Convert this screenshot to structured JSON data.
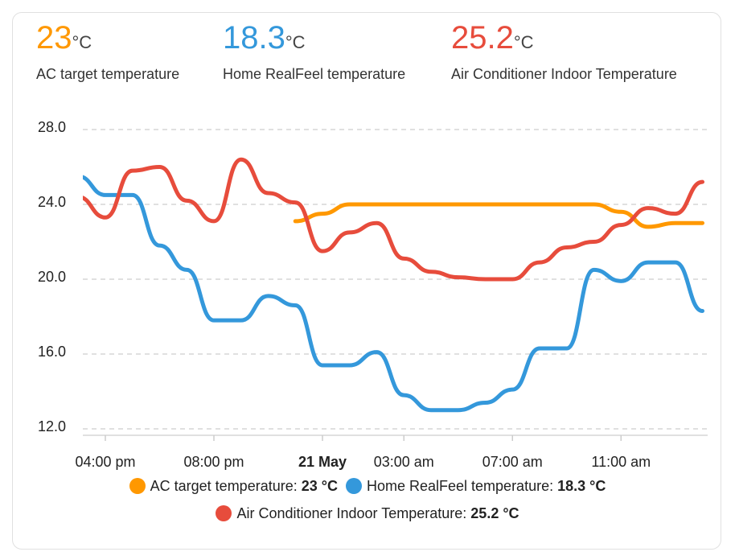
{
  "stats": [
    {
      "value": "23",
      "unit": "°C",
      "label": "AC target temperature",
      "color": "#ff9800"
    },
    {
      "value": "18.3",
      "unit": "°C",
      "label": "Home RealFeel temperature",
      "color": "#3498db"
    },
    {
      "value": "25.2",
      "unit": "°C",
      "label": "Air Conditioner Indoor Temperature",
      "color": "#e74c3c"
    }
  ],
  "chart_data": {
    "type": "line",
    "categories": [
      null,
      "04:00 pm",
      null,
      null,
      null,
      "08:00 pm",
      null,
      null,
      null,
      "21 May",
      null,
      null,
      "03:00 am",
      null,
      null,
      null,
      "07:00 am",
      null,
      null,
      null,
      "11:00 am",
      null,
      null,
      null
    ],
    "series": [
      {
        "name": "AC target temperature",
        "color": "#ff9800",
        "values": [
          null,
          null,
          null,
          null,
          null,
          null,
          null,
          null,
          23.1,
          23.5,
          24,
          24,
          24,
          24,
          24,
          24,
          24,
          24,
          24,
          24,
          23.6,
          22.8,
          23,
          23
        ]
      },
      {
        "name": "Home RealFeel temperature",
        "color": "#3498db",
        "values": [
          25.5,
          24.5,
          24.5,
          21.8,
          20.5,
          17.8,
          17.8,
          19.1,
          18.6,
          15.4,
          15.4,
          16.1,
          13.8,
          13,
          13,
          13.4,
          14.1,
          16.3,
          16.3,
          20.5,
          19.9,
          20.9,
          20.9,
          18.3
        ]
      },
      {
        "name": "Air Conditioner Indoor Temperature",
        "color": "#e74c3c",
        "values": [
          24.4,
          23.3,
          25.8,
          26,
          24.2,
          23.1,
          26.4,
          24.6,
          24.1,
          21.5,
          22.5,
          23,
          21.1,
          20.4,
          20.1,
          20,
          20,
          20.9,
          21.7,
          22,
          22.9,
          23.8,
          23.5,
          25.2
        ]
      }
    ],
    "ylim": [
      12,
      28
    ],
    "yticks": [
      {
        "value": 12,
        "label": "12.0"
      },
      {
        "value": 16,
        "label": "16.0"
      },
      {
        "value": 20,
        "label": "20.0"
      },
      {
        "value": 24,
        "label": "24.0"
      },
      {
        "value": 28,
        "label": "28.0"
      }
    ],
    "grid": true,
    "legend": [
      {
        "label": "AC target temperature:",
        "value": "23 °C"
      },
      {
        "label": "Home RealFeel temperature:",
        "value": "18.3 °C"
      },
      {
        "label": "Air Conditioner Indoor Temperature:",
        "value": "25.2 °C"
      }
    ]
  }
}
